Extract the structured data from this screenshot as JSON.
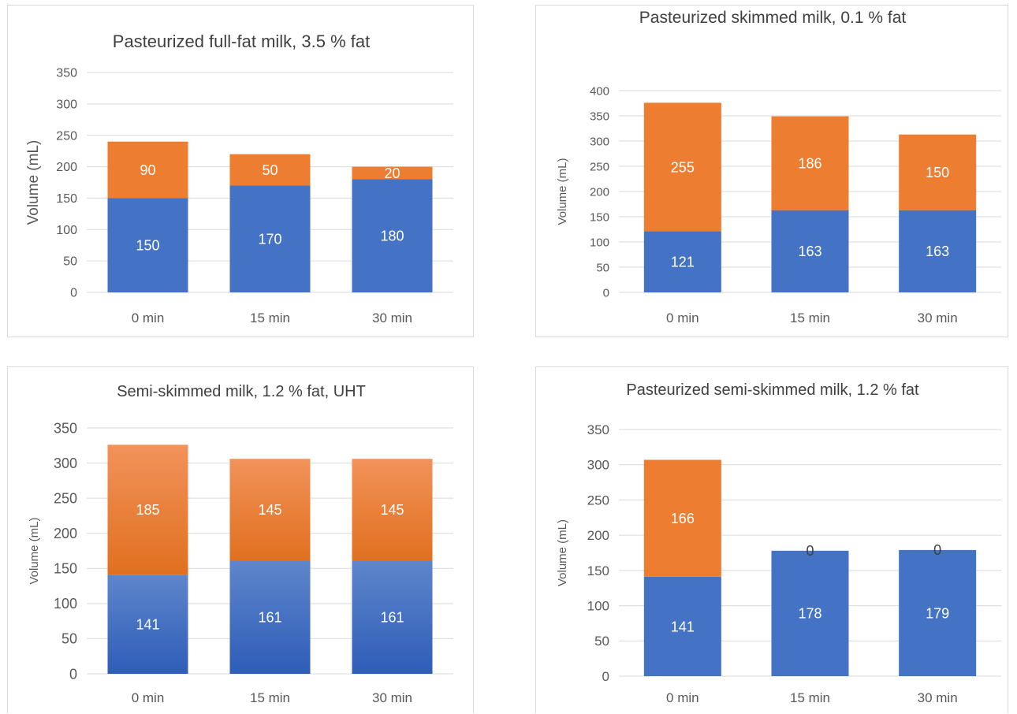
{
  "colors": {
    "base": "#4472C4",
    "top": "#ED7D31",
    "grid": "#D9D9D9",
    "axis": "#595959",
    "title": "#404040"
  },
  "chart_data": [
    {
      "type": "bar",
      "stacked": true,
      "title": "Pasteurized full-fat milk, 3.5 % fat",
      "xlabel": "",
      "ylabel": "Volume (mL)",
      "categories": [
        "0 min",
        "15 min",
        "30 min"
      ],
      "series": [
        {
          "values": [
            150,
            170,
            180
          ],
          "color": "#4472C4"
        },
        {
          "values": [
            90,
            50,
            20
          ],
          "color": "#ED7D31"
        }
      ],
      "ylim": [
        0,
        350
      ],
      "ytick_step": 50,
      "grid": true,
      "legend": "none"
    },
    {
      "type": "bar",
      "stacked": true,
      "title": "Pasteurized skimmed milk, 0.1 % fat",
      "xlabel": "",
      "ylabel": "Volume (mL)",
      "categories": [
        "0 min",
        "15 min",
        "30 min"
      ],
      "series": [
        {
          "values": [
            121,
            163,
            163
          ],
          "color": "#4472C4"
        },
        {
          "values": [
            255,
            186,
            150
          ],
          "color": "#ED7D31"
        }
      ],
      "ylim": [
        0,
        400
      ],
      "ytick_step": 50,
      "grid": true,
      "legend": "none"
    },
    {
      "type": "bar",
      "stacked": true,
      "title": "Semi-skimmed milk, 1.2 % fat, UHT",
      "xlabel": "",
      "ylabel": "Volume (mL)",
      "categories": [
        "0 min",
        "15 min",
        "30 min"
      ],
      "series": [
        {
          "values": [
            141,
            161,
            161
          ],
          "color": "#4472C4"
        },
        {
          "values": [
            185,
            145,
            145
          ],
          "color": "#ED7D31"
        }
      ],
      "ylim": [
        0,
        350
      ],
      "ytick_step": 50,
      "grid": true,
      "legend": "none"
    },
    {
      "type": "bar",
      "stacked": true,
      "title": "Pasteurized semi-skimmed milk, 1.2 % fat",
      "xlabel": "",
      "ylabel": "Volume (mL)",
      "categories": [
        "0 min",
        "15 min",
        "30 min"
      ],
      "series": [
        {
          "values": [
            141,
            178,
            179
          ],
          "color": "#4472C4"
        },
        {
          "values": [
            166,
            0,
            0
          ],
          "color": "#ED7D31"
        }
      ],
      "ylim": [
        0,
        350
      ],
      "ytick_step": 50,
      "grid": true,
      "legend": "none"
    }
  ]
}
